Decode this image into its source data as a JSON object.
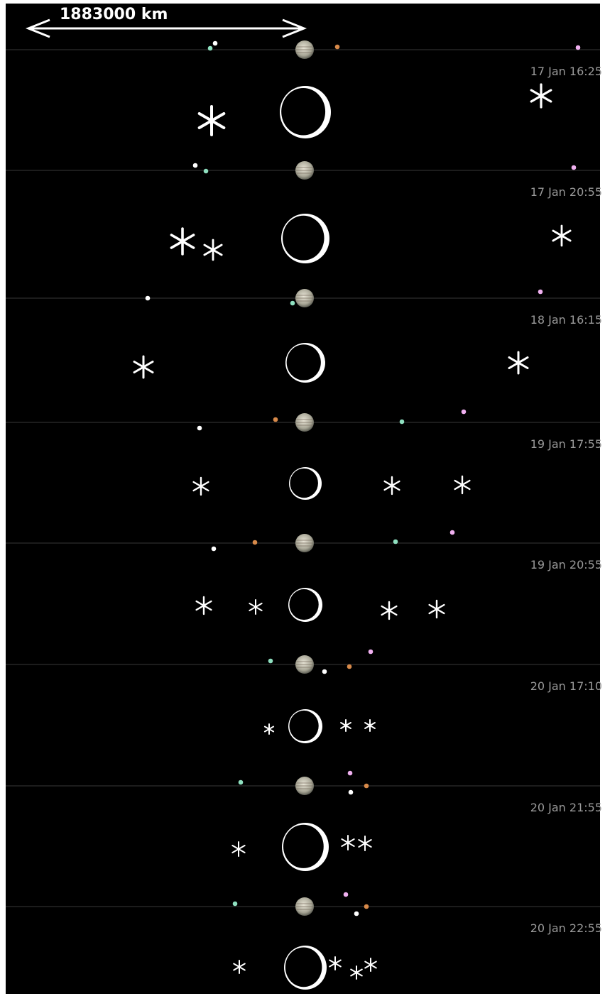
{
  "scale_label": "1883000 km",
  "rows": [
    {
      "time": "17 Jan 16:25"
    },
    {
      "time": "17 Jan 20:55"
    },
    {
      "time": "18 Jan 16:15"
    },
    {
      "time": "19 Jan 17:55"
    },
    {
      "time": "19 Jan 20:55"
    },
    {
      "time": "20 Jan 17:10"
    },
    {
      "time": "20 Jan 21:55"
    },
    {
      "time": "20 Jan 22:55"
    }
  ]
}
